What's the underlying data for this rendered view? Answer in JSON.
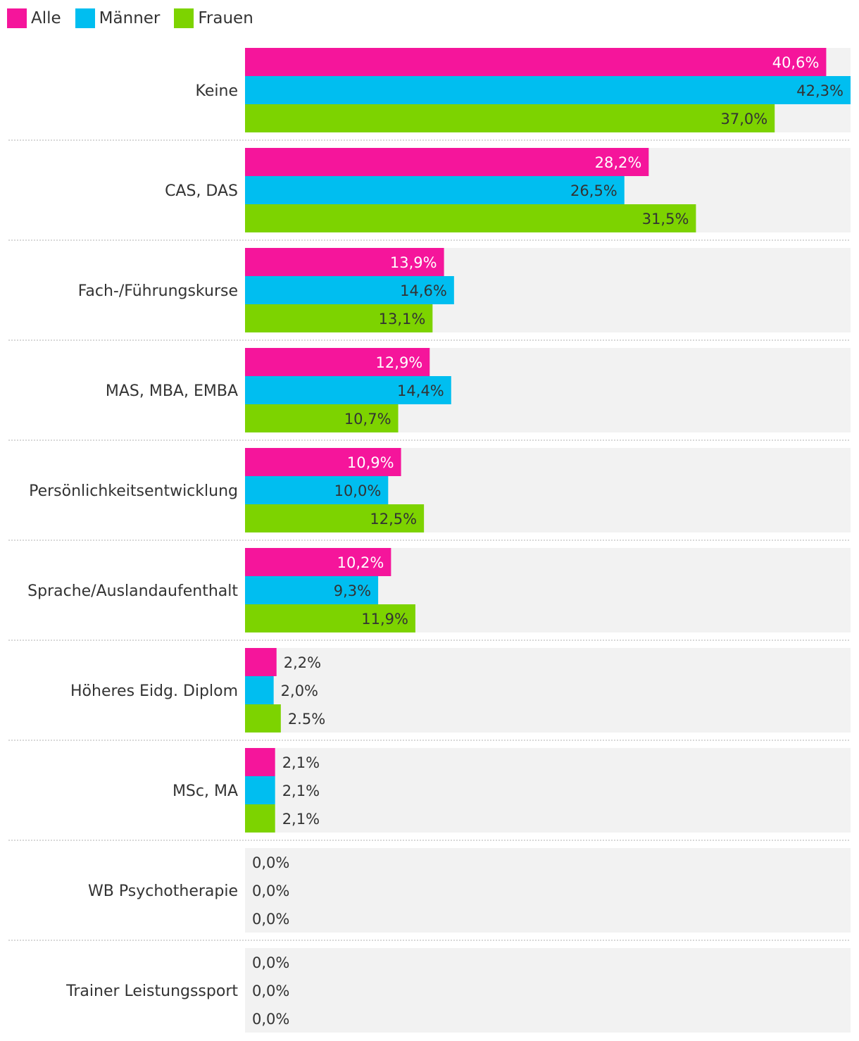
{
  "chart_data": {
    "type": "bar",
    "orientation": "horizontal",
    "title": "",
    "xlabel": "",
    "ylabel": "",
    "xlim": [
      0,
      42.3
    ],
    "grid": false,
    "legend_position": "top-left",
    "categories": [
      "Keine",
      "CAS, DAS",
      "Fach-/Führungskurse",
      "MAS, MBA, EMBA",
      "Persönlichkeitsentwicklung",
      "Sprache/Auslandaufenthalt",
      "Höheres Eidg. Diplom",
      "MSc, MA",
      "WB Psychotherapie",
      "Trainer Leistungssport"
    ],
    "series": [
      {
        "name": "Alle",
        "color": "#f5159b",
        "label_color_inside": "#ffffff",
        "values": [
          40.6,
          28.2,
          13.9,
          12.9,
          10.9,
          10.2,
          2.2,
          2.1,
          0.0,
          0.0
        ],
        "labels": [
          "40,6%",
          "28,2%",
          "13,9%",
          "12,9%",
          "10,9%",
          "10,2%",
          "2,2%",
          "2,1%",
          "0,0%",
          "0,0%"
        ]
      },
      {
        "name": "Männer",
        "color": "#00bef0",
        "label_color_inside": "#333333",
        "values": [
          42.3,
          26.5,
          14.6,
          14.4,
          10.0,
          9.3,
          2.0,
          2.1,
          0.0,
          0.0
        ],
        "labels": [
          "42,3%",
          "26,5%",
          "14,6%",
          "14,4%",
          "10,0%",
          "9,3%",
          "2,0%",
          "2,1%",
          "0,0%",
          "0,0%"
        ]
      },
      {
        "name": "Frauen",
        "color": "#7dd300",
        "label_color_inside": "#333333",
        "values": [
          37.0,
          31.5,
          13.1,
          10.7,
          12.5,
          11.9,
          2.5,
          2.1,
          0.0,
          0.0
        ],
        "labels": [
          "37,0%",
          "31,5%",
          "13,1%",
          "10,7%",
          "12,5%",
          "11,9%",
          "2.5%",
          "2,1%",
          "0,0%",
          "0,0%"
        ]
      }
    ]
  },
  "colors": {
    "track": "#f2f2f2",
    "divider": "#cccccc",
    "text": "#333333"
  }
}
